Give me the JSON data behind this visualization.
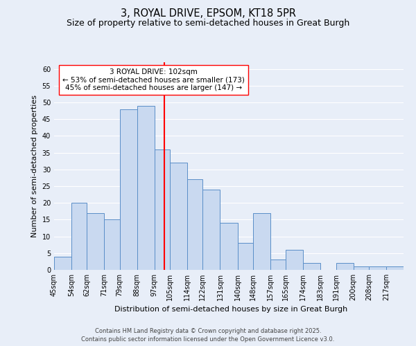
{
  "title": "3, ROYAL DRIVE, EPSOM, KT18 5PR",
  "subtitle": "Size of property relative to semi-detached houses in Great Burgh",
  "xlabel": "Distribution of semi-detached houses by size in Great Burgh",
  "ylabel": "Number of semi-detached properties",
  "bar_labels": [
    "45sqm",
    "54sqm",
    "62sqm",
    "71sqm",
    "79sqm",
    "88sqm",
    "97sqm",
    "105sqm",
    "114sqm",
    "122sqm",
    "131sqm",
    "140sqm",
    "148sqm",
    "157sqm",
    "165sqm",
    "174sqm",
    "183sqm",
    "191sqm",
    "200sqm",
    "208sqm",
    "217sqm"
  ],
  "bar_values": [
    4,
    20,
    17,
    15,
    48,
    49,
    36,
    32,
    27,
    24,
    14,
    8,
    17,
    3,
    6,
    2,
    0,
    2,
    1,
    1,
    1
  ],
  "bin_edges": [
    45,
    54,
    62,
    71,
    79,
    88,
    97,
    105,
    114,
    122,
    131,
    140,
    148,
    157,
    165,
    174,
    183,
    191,
    200,
    208,
    217,
    226
  ],
  "bar_color": "#c9d9f0",
  "bar_edgecolor": "#5a8ec8",
  "vline_x": 102,
  "vline_color": "red",
  "annotation_box_title": "3 ROYAL DRIVE: 102sqm",
  "annotation_line1": "← 53% of semi-detached houses are smaller (173)",
  "annotation_line2": "45% of semi-detached houses are larger (147) →",
  "ylim": [
    0,
    62
  ],
  "yticks": [
    0,
    5,
    10,
    15,
    20,
    25,
    30,
    35,
    40,
    45,
    50,
    55,
    60
  ],
  "bg_color": "#e8eef8",
  "footer1": "Contains HM Land Registry data © Crown copyright and database right 2025.",
  "footer2": "Contains public sector information licensed under the Open Government Licence v3.0.",
  "title_fontsize": 10.5,
  "subtitle_fontsize": 9,
  "axis_label_fontsize": 8,
  "tick_fontsize": 7,
  "annotation_fontsize": 7.5,
  "footer_fontsize": 6
}
